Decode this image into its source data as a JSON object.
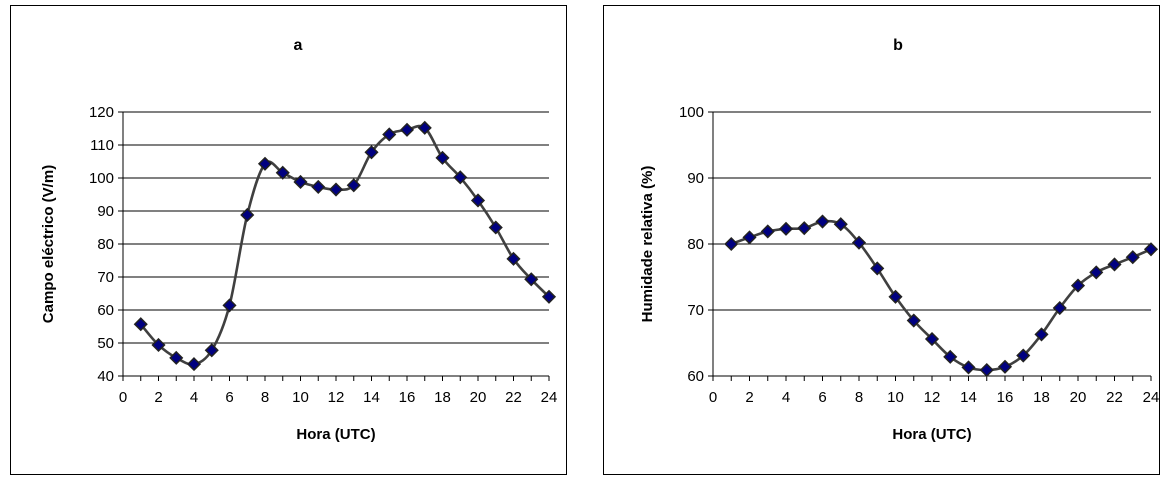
{
  "chart_data": [
    {
      "type": "line",
      "title": "a",
      "xlabel": "Hora (UTC)",
      "ylabel": "Campo eléctrico (V/m)",
      "xlim": [
        0,
        24
      ],
      "ylim": [
        40,
        120
      ],
      "xticks": [
        0,
        2,
        4,
        6,
        8,
        10,
        12,
        14,
        16,
        18,
        20,
        22,
        24
      ],
      "yticks": [
        40,
        50,
        60,
        70,
        80,
        90,
        100,
        110,
        120
      ],
      "grid": "horizontal",
      "legend": "none",
      "line_color": "#404040",
      "marker_color": "#000080",
      "series": [
        {
          "x": [
            1,
            2,
            3,
            4,
            5,
            6,
            7,
            8,
            9,
            10,
            11,
            12,
            13,
            14,
            15,
            16,
            17,
            18,
            19,
            20,
            21,
            22,
            23,
            24
          ],
          "y": [
            55.7,
            49.4,
            45.5,
            43.6,
            47.8,
            61.4,
            88.8,
            104.3,
            101.6,
            98.8,
            97.3,
            96.5,
            97.8,
            107.8,
            113.2,
            114.6,
            115.2,
            106.1,
            100.2,
            93.2,
            85.0,
            75.5,
            69.3,
            64.0
          ]
        }
      ]
    },
    {
      "type": "line",
      "title": "b",
      "xlabel": "Hora (UTC)",
      "ylabel": "Humidade relativa (%)",
      "xlim": [
        0,
        24
      ],
      "ylim": [
        60,
        100
      ],
      "xticks": [
        0,
        2,
        4,
        6,
        8,
        10,
        12,
        14,
        16,
        18,
        20,
        22,
        24
      ],
      "yticks": [
        60,
        70,
        80,
        90,
        100
      ],
      "grid": "horizontal",
      "legend": "none",
      "line_color": "#404040",
      "marker_color": "#000080",
      "series": [
        {
          "x": [
            1,
            2,
            3,
            4,
            5,
            6,
            7,
            8,
            9,
            10,
            11,
            12,
            13,
            14,
            15,
            16,
            17,
            18,
            19,
            20,
            21,
            22,
            23,
            24
          ],
          "y": [
            80.0,
            81.0,
            81.9,
            82.3,
            82.4,
            83.4,
            83.0,
            80.2,
            76.3,
            72.0,
            68.4,
            65.6,
            62.9,
            61.3,
            60.9,
            61.4,
            63.1,
            66.3,
            70.3,
            73.7,
            75.7,
            76.9,
            78.0,
            79.2
          ]
        }
      ]
    }
  ]
}
